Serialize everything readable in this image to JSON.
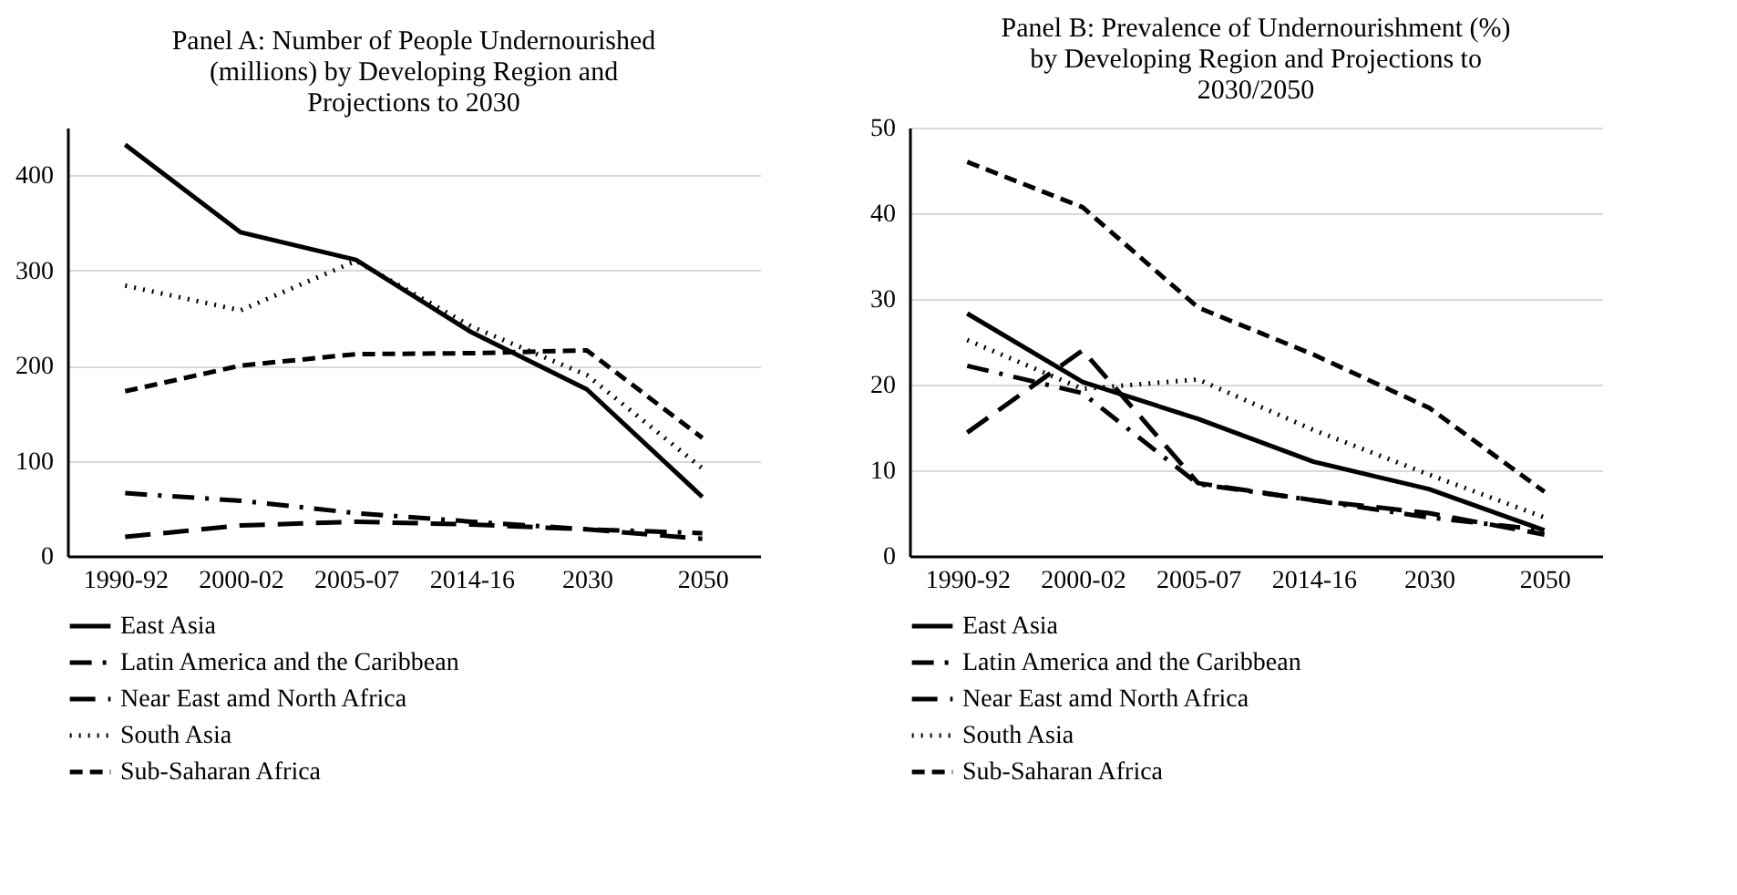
{
  "chart_data": [
    {
      "type": "line",
      "title": "Panel A: Number of People Undernourished (millions) by Developing Region and Projections to 2030",
      "categories": [
        "1990-92",
        "2000-02",
        "2005-07",
        "2014-16",
        "2030",
        "2050"
      ],
      "ylim": [
        0,
        450
      ],
      "yticks": [
        0,
        100,
        200,
        300,
        400
      ],
      "grid": "y",
      "legend": "bottom",
      "series": [
        {
          "name": "East Asia",
          "color": "#000000",
          "line_style": "solid",
          "values": [
            432,
            340,
            311,
            235,
            175,
            62
          ]
        },
        {
          "name": "Latin America and the Caribbean",
          "color": "#000000",
          "line_style": "dashdot",
          "values": [
            66,
            58,
            45,
            36,
            28,
            24
          ]
        },
        {
          "name": "Near East amd North Africa",
          "color": "#000000",
          "line_style": "longdash",
          "values": [
            20,
            32,
            36,
            33,
            28,
            18
          ]
        },
        {
          "name": "South Asia",
          "color": "#000000",
          "line_style": "dotted",
          "values": [
            284,
            258,
            310,
            241,
            190,
            92
          ]
        },
        {
          "name": "Sub-Saharan Africa",
          "color": "#000000",
          "line_style": "dashed",
          "values": [
            173,
            200,
            212,
            213,
            216,
            124
          ]
        }
      ]
    },
    {
      "type": "line",
      "title": "Panel B: Prevalence of Undernourishment (%) by Developing Region and Projections to 2030/2050",
      "categories": [
        "1990-92",
        "2000-02",
        "2005-07",
        "2014-16",
        "2030",
        "2050"
      ],
      "ylim": [
        0,
        50
      ],
      "yticks": [
        0,
        10,
        20,
        30,
        40,
        50
      ],
      "grid": "y",
      "legend": "bottom",
      "series": [
        {
          "name": "East Asia",
          "color": "#000000",
          "line_style": "solid",
          "values": [
            28.3,
            20.3,
            16,
            11,
            7.8,
            3
          ]
        },
        {
          "name": "Latin America and the Caribbean",
          "color": "#000000",
          "line_style": "dashdot",
          "values": [
            22.2,
            19,
            8.4,
            6.5,
            4.5,
            3
          ]
        },
        {
          "name": "Near East amd North Africa",
          "color": "#000000",
          "line_style": "longdash",
          "values": [
            14.4,
            24,
            8.5,
            6.5,
            5,
            2.5
          ]
        },
        {
          "name": "South Asia",
          "color": "#000000",
          "line_style": "dotted",
          "values": [
            25.2,
            19.5,
            20.6,
            14.7,
            9.5,
            4.5
          ]
        },
        {
          "name": "Sub-Saharan Africa",
          "color": "#000000",
          "line_style": "dashed",
          "values": [
            46,
            40.7,
            29,
            23.5,
            17.3,
            7.5
          ]
        }
      ]
    }
  ]
}
